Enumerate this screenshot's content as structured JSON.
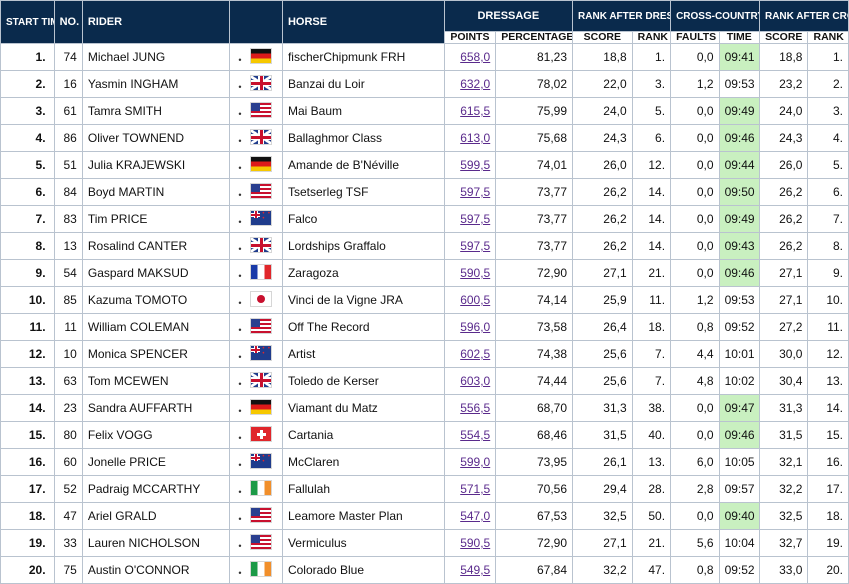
{
  "headers": {
    "start_time": "START TIME CROSS/ RANK",
    "no": "NO.",
    "rider": "RIDER",
    "horse": "HORSE",
    "dressage": "DRESSAGE",
    "rank_after_dressage": "RANK AFTER DRESSAGE",
    "cross_country": "CROSS-COUNTRY",
    "rank_after_cross_country": "RANK AFTER CROSS-COUNTRY",
    "points": "POINTS",
    "percentage": "PERCENTAGE",
    "score": "SCORE",
    "rank": "RANK",
    "faults": "FAULTS",
    "time": "TIME",
    "score2": "SCORE",
    "rank2": "RANK"
  },
  "highlight_color": "#c9f0c0",
  "header_color": "#0a2a4c",
  "rows": [
    {
      "rank": "1.",
      "no": "74",
      "rider": "Michael JUNG",
      "flag": "ger",
      "horse": "fischerChipmunk FRH",
      "points": "658,0",
      "pct": "81,23",
      "d_score": "18,8",
      "d_rank": "1.",
      "faults": "0,0",
      "time": "09:41",
      "fast": true,
      "xc_score": "18,8",
      "xc_rank": "1."
    },
    {
      "rank": "2.",
      "no": "16",
      "rider": "Yasmin INGHAM",
      "flag": "gbr",
      "horse": "Banzai du Loir",
      "points": "632,0",
      "pct": "78,02",
      "d_score": "22,0",
      "d_rank": "3.",
      "faults": "1,2",
      "time": "09:53",
      "fast": false,
      "xc_score": "23,2",
      "xc_rank": "2."
    },
    {
      "rank": "3.",
      "no": "61",
      "rider": "Tamra SMITH",
      "flag": "usa",
      "horse": "Mai Baum",
      "points": "615,5",
      "pct": "75,99",
      "d_score": "24,0",
      "d_rank": "5.",
      "faults": "0,0",
      "time": "09:49",
      "fast": true,
      "xc_score": "24,0",
      "xc_rank": "3."
    },
    {
      "rank": "4.",
      "no": "86",
      "rider": "Oliver TOWNEND",
      "flag": "gbr",
      "horse": "Ballaghmor Class",
      "points": "613,0",
      "pct": "75,68",
      "d_score": "24,3",
      "d_rank": "6.",
      "faults": "0,0",
      "time": "09:46",
      "fast": true,
      "xc_score": "24,3",
      "xc_rank": "4."
    },
    {
      "rank": "5.",
      "no": "51",
      "rider": "Julia KRAJEWSKI",
      "flag": "ger",
      "horse": "Amande de B'Néville",
      "points": "599,5",
      "pct": "74,01",
      "d_score": "26,0",
      "d_rank": "12.",
      "faults": "0,0",
      "time": "09:44",
      "fast": true,
      "xc_score": "26,0",
      "xc_rank": "5."
    },
    {
      "rank": "6.",
      "no": "84",
      "rider": "Boyd MARTIN",
      "flag": "usa",
      "horse": "Tsetserleg TSF",
      "points": "597,5",
      "pct": "73,77",
      "d_score": "26,2",
      "d_rank": "14.",
      "faults": "0,0",
      "time": "09:50",
      "fast": true,
      "xc_score": "26,2",
      "xc_rank": "6."
    },
    {
      "rank": "7.",
      "no": "83",
      "rider": "Tim PRICE",
      "flag": "nzl",
      "horse": "Falco",
      "points": "597,5",
      "pct": "73,77",
      "d_score": "26,2",
      "d_rank": "14.",
      "faults": "0,0",
      "time": "09:49",
      "fast": true,
      "xc_score": "26,2",
      "xc_rank": "7."
    },
    {
      "rank": "8.",
      "no": "13",
      "rider": "Rosalind CANTER",
      "flag": "gbr",
      "horse": "Lordships Graffalo",
      "points": "597,5",
      "pct": "73,77",
      "d_score": "26,2",
      "d_rank": "14.",
      "faults": "0,0",
      "time": "09:43",
      "fast": true,
      "xc_score": "26,2",
      "xc_rank": "8."
    },
    {
      "rank": "9.",
      "no": "54",
      "rider": "Gaspard MAKSUD",
      "flag": "fra",
      "horse": "Zaragoza",
      "points": "590,5",
      "pct": "72,90",
      "d_score": "27,1",
      "d_rank": "21.",
      "faults": "0,0",
      "time": "09:46",
      "fast": true,
      "xc_score": "27,1",
      "xc_rank": "9."
    },
    {
      "rank": "10.",
      "no": "85",
      "rider": "Kazuma TOMOTO",
      "flag": "jpn",
      "horse": "Vinci de la Vigne JRA",
      "points": "600,5",
      "pct": "74,14",
      "d_score": "25,9",
      "d_rank": "11.",
      "faults": "1,2",
      "time": "09:53",
      "fast": false,
      "xc_score": "27,1",
      "xc_rank": "10."
    },
    {
      "rank": "11.",
      "no": "11",
      "rider": "William COLEMAN",
      "flag": "usa",
      "horse": "Off The Record",
      "points": "596,0",
      "pct": "73,58",
      "d_score": "26,4",
      "d_rank": "18.",
      "faults": "0,8",
      "time": "09:52",
      "fast": false,
      "xc_score": "27,2",
      "xc_rank": "11."
    },
    {
      "rank": "12.",
      "no": "10",
      "rider": "Monica SPENCER",
      "flag": "nzl",
      "horse": "Artist",
      "points": "602,5",
      "pct": "74,38",
      "d_score": "25,6",
      "d_rank": "7.",
      "faults": "4,4",
      "time": "10:01",
      "fast": false,
      "xc_score": "30,0",
      "xc_rank": "12."
    },
    {
      "rank": "13.",
      "no": "63",
      "rider": "Tom MCEWEN",
      "flag": "gbr",
      "horse": "Toledo de Kerser",
      "points": "603,0",
      "pct": "74,44",
      "d_score": "25,6",
      "d_rank": "7.",
      "faults": "4,8",
      "time": "10:02",
      "fast": false,
      "xc_score": "30,4",
      "xc_rank": "13."
    },
    {
      "rank": "14.",
      "no": "23",
      "rider": "Sandra AUFFARTH",
      "flag": "ger",
      "horse": "Viamant du Matz",
      "points": "556,5",
      "pct": "68,70",
      "d_score": "31,3",
      "d_rank": "38.",
      "faults": "0,0",
      "time": "09:47",
      "fast": true,
      "xc_score": "31,3",
      "xc_rank": "14."
    },
    {
      "rank": "15.",
      "no": "80",
      "rider": "Felix VOGG",
      "flag": "sui",
      "horse": "Cartania",
      "points": "554,5",
      "pct": "68,46",
      "d_score": "31,5",
      "d_rank": "40.",
      "faults": "0,0",
      "time": "09:46",
      "fast": true,
      "xc_score": "31,5",
      "xc_rank": "15."
    },
    {
      "rank": "16.",
      "no": "60",
      "rider": "Jonelle PRICE",
      "flag": "nzl",
      "horse": "McClaren",
      "points": "599,0",
      "pct": "73,95",
      "d_score": "26,1",
      "d_rank": "13.",
      "faults": "6,0",
      "time": "10:05",
      "fast": false,
      "xc_score": "32,1",
      "xc_rank": "16."
    },
    {
      "rank": "17.",
      "no": "52",
      "rider": "Padraig MCCARTHY",
      "flag": "irl",
      "horse": "Fallulah",
      "points": "571,5",
      "pct": "70,56",
      "d_score": "29,4",
      "d_rank": "28.",
      "faults": "2,8",
      "time": "09:57",
      "fast": false,
      "xc_score": "32,2",
      "xc_rank": "17."
    },
    {
      "rank": "18.",
      "no": "47",
      "rider": "Ariel GRALD",
      "flag": "usa",
      "horse": "Leamore Master Plan",
      "points": "547,0",
      "pct": "67,53",
      "d_score": "32,5",
      "d_rank": "50.",
      "faults": "0,0",
      "time": "09:40",
      "fast": true,
      "xc_score": "32,5",
      "xc_rank": "18."
    },
    {
      "rank": "19.",
      "no": "33",
      "rider": "Lauren NICHOLSON",
      "flag": "usa",
      "horse": "Vermiculus",
      "points": "590,5",
      "pct": "72,90",
      "d_score": "27,1",
      "d_rank": "21.",
      "faults": "5,6",
      "time": "10:04",
      "fast": false,
      "xc_score": "32,7",
      "xc_rank": "19."
    },
    {
      "rank": "20.",
      "no": "75",
      "rider": "Austin O'CONNOR",
      "flag": "irl",
      "horse": "Colorado Blue",
      "points": "549,5",
      "pct": "67,84",
      "d_score": "32,2",
      "d_rank": "47.",
      "faults": "0,8",
      "time": "09:52",
      "fast": false,
      "xc_score": "33,0",
      "xc_rank": "20."
    }
  ]
}
